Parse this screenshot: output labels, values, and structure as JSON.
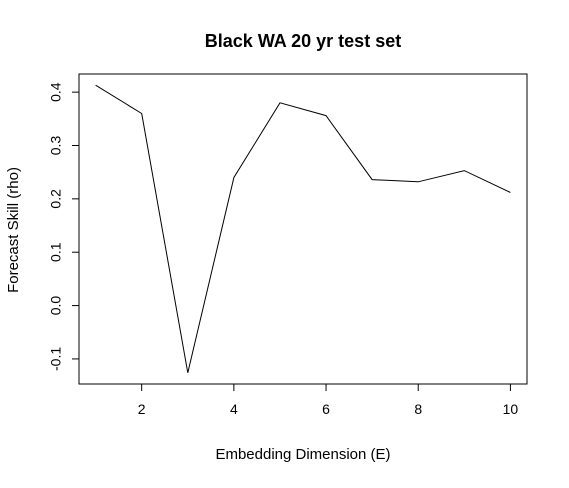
{
  "chart_data": {
    "type": "line",
    "title": "Black WA 20 yr test set",
    "xlabel": "Embedding Dimension (E)",
    "ylabel": "Forecast Skill (rho)",
    "x": [
      1,
      2,
      3,
      4,
      5,
      6,
      7,
      8,
      9,
      10
    ],
    "series": [
      {
        "values": [
          0.413,
          0.36,
          -0.126,
          0.24,
          0.38,
          0.356,
          0.236,
          0.232,
          0.253,
          0.212
        ]
      }
    ],
    "xlim": [
      0.64,
      10.36
    ],
    "ylim": [
      -0.147,
      0.434
    ],
    "x_ticks": [
      "2",
      "4",
      "6",
      "8",
      "10"
    ],
    "y_ticks": [
      "-0.1",
      "0.0",
      "0.1",
      "0.2",
      "0.3",
      "0.4"
    ],
    "grid": false,
    "legend": "none",
    "line_color": "#000000"
  }
}
